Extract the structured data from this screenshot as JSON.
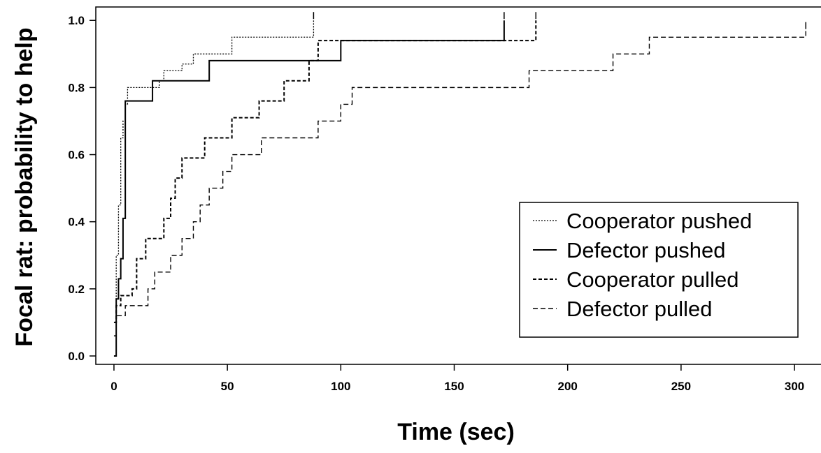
{
  "chart_data": {
    "type": "line",
    "title": "",
    "xlabel": "Time (sec)",
    "ylabel": "Focal rat: probability to help",
    "xlim": [
      -8,
      312
    ],
    "ylim": [
      -0.025,
      1.04
    ],
    "xticks": [
      0,
      50,
      100,
      150,
      200,
      250,
      300
    ],
    "xtick_labels": [
      "0",
      "50",
      "100",
      "150",
      "200",
      "250",
      "300"
    ],
    "yticks": [
      0.0,
      0.2,
      0.4,
      0.6,
      0.8,
      1.0
    ],
    "ytick_labels": [
      "0.0",
      "0.2",
      "0.4",
      "0.6",
      "0.8",
      "1.0"
    ],
    "grid": false,
    "legend_position": "bottom-right",
    "step": "post",
    "series": [
      {
        "name": "Cooperator pushed",
        "x": [
          0,
          1,
          2,
          3,
          4,
          5,
          6,
          8,
          10,
          16,
          20,
          22,
          25,
          30,
          35,
          42,
          52,
          60,
          76,
          88
        ],
        "y": [
          0.0,
          0.3,
          0.45,
          0.65,
          0.7,
          0.75,
          0.8,
          0.8,
          0.8,
          0.8,
          0.82,
          0.85,
          0.85,
          0.87,
          0.9,
          0.9,
          0.95,
          0.95,
          0.95,
          1.0
        ]
      },
      {
        "name": "Defector pushed",
        "x": [
          0,
          1,
          2,
          3,
          4,
          5,
          16,
          17,
          25,
          41,
          42,
          60,
          80,
          96,
          100,
          101,
          130,
          172
        ],
        "y": [
          0.0,
          0.17,
          0.23,
          0.29,
          0.41,
          0.76,
          0.76,
          0.82,
          0.82,
          0.82,
          0.88,
          0.88,
          0.88,
          0.88,
          0.94,
          0.94,
          0.94,
          1.0
        ]
      },
      {
        "name": "Cooperator pulled",
        "x": [
          0,
          1,
          3,
          5,
          8,
          10,
          14,
          18,
          20,
          22,
          25,
          27,
          30,
          32,
          40,
          43,
          48,
          52,
          58,
          64,
          68,
          75,
          80,
          86,
          90,
          100,
          172,
          186
        ],
        "y": [
          0.1,
          0.15,
          0.18,
          0.18,
          0.2,
          0.29,
          0.35,
          0.35,
          0.35,
          0.41,
          0.47,
          0.53,
          0.59,
          0.59,
          0.65,
          0.65,
          0.65,
          0.71,
          0.71,
          0.76,
          0.76,
          0.82,
          0.82,
          0.88,
          0.94,
          0.94,
          0.94,
          1.0
        ]
      },
      {
        "name": "Defector pulled",
        "x": [
          0,
          1,
          5,
          10,
          15,
          18,
          20,
          25,
          28,
          30,
          35,
          38,
          42,
          45,
          48,
          52,
          60,
          65,
          70,
          80,
          90,
          95,
          100,
          105,
          140,
          170,
          183,
          190,
          220,
          225,
          236,
          250,
          305
        ],
        "y": [
          0.06,
          0.12,
          0.15,
          0.15,
          0.2,
          0.25,
          0.25,
          0.3,
          0.3,
          0.35,
          0.4,
          0.45,
          0.5,
          0.5,
          0.55,
          0.6,
          0.6,
          0.65,
          0.65,
          0.65,
          0.7,
          0.7,
          0.75,
          0.8,
          0.8,
          0.8,
          0.85,
          0.85,
          0.9,
          0.9,
          0.95,
          0.95,
          0.97
        ]
      }
    ]
  },
  "legend": {
    "items": [
      {
        "label": "Cooperator pushed"
      },
      {
        "label": "Defector pushed"
      },
      {
        "label": "Cooperator pulled"
      },
      {
        "label": "Defector pulled"
      }
    ]
  },
  "colors": {
    "line": "#000000",
    "background": "#ffffff"
  }
}
